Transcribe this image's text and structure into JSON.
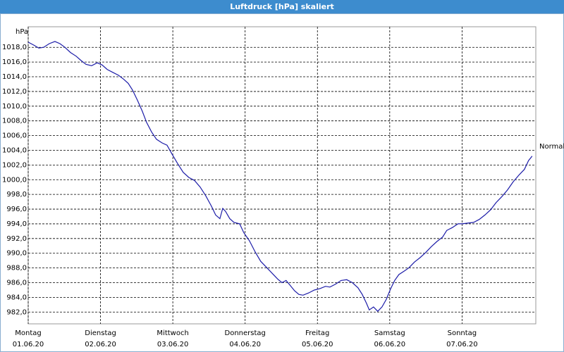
{
  "chart_data": {
    "type": "line",
    "title": "Luftdruck [hPa] skaliert",
    "y_label": "hPa",
    "annotation": "Normal",
    "xlim": [
      0,
      7.02
    ],
    "ylim": [
      980.4,
      1020.8
    ],
    "grid": true,
    "color": "#1c1ca8",
    "xticks": [
      {
        "value": 0,
        "label": "Montag"
      },
      {
        "value": 1,
        "label": "Dienstag"
      },
      {
        "value": 2,
        "label": "Mittwoch"
      },
      {
        "value": 3,
        "label": "Donnerstag"
      },
      {
        "value": 4,
        "label": "Freitag"
      },
      {
        "value": 5,
        "label": "Samstag"
      },
      {
        "value": 6,
        "label": "Sonntag"
      }
    ],
    "xtick_dates": [
      "01.06.20",
      "02.06.20",
      "03.06.20",
      "04.06.20",
      "05.06.20",
      "06.06.20",
      "07.06.20"
    ],
    "yticks": [
      {
        "value": 982,
        "label": "982,0"
      },
      {
        "value": 984,
        "label": "984,0"
      },
      {
        "value": 986,
        "label": "986,0"
      },
      {
        "value": 988,
        "label": "988,0"
      },
      {
        "value": 990,
        "label": "990,0"
      },
      {
        "value": 992,
        "label": "992,0"
      },
      {
        "value": 994,
        "label": "994,0"
      },
      {
        "value": 996,
        "label": "996,0"
      },
      {
        "value": 998,
        "label": "998,0"
      },
      {
        "value": 1000,
        "label": "1000,0"
      },
      {
        "value": 1002,
        "label": "1002,0"
      },
      {
        "value": 1004,
        "label": "1004,0"
      },
      {
        "value": 1006,
        "label": "1006,0"
      },
      {
        "value": 1008,
        "label": "1008,0"
      },
      {
        "value": 1010,
        "label": "1010,0"
      },
      {
        "value": 1012,
        "label": "1012,0"
      },
      {
        "value": 1014,
        "label": "1014,0"
      },
      {
        "value": 1016,
        "label": "1016,0"
      },
      {
        "value": 1018,
        "label": "1018,0"
      }
    ],
    "x": [
      0,
      0.078,
      0.146,
      0.214,
      0.292,
      0.37,
      0.439,
      0.507,
      0.585,
      0.663,
      0.731,
      0.799,
      0.877,
      0.955,
      1.023,
      1.092,
      1.17,
      1.248,
      1.316,
      1.384,
      1.442,
      1.511,
      1.579,
      1.637,
      1.706,
      1.774,
      1.852,
      1.92,
      1.988,
      2.066,
      2.144,
      2.222,
      2.3,
      2.378,
      2.456,
      2.534,
      2.593,
      2.651,
      2.69,
      2.729,
      2.788,
      2.846,
      2.924,
      2.982,
      3.06,
      3.138,
      3.216,
      3.294,
      3.372,
      3.45,
      3.509,
      3.567,
      3.626,
      3.684,
      3.743,
      3.801,
      3.879,
      3.957,
      4.035,
      4.113,
      4.172,
      4.25,
      4.327,
      4.405,
      4.483,
      4.561,
      4.62,
      4.678,
      4.717,
      4.776,
      4.834,
      4.893,
      4.951,
      5.01,
      5.068,
      5.127,
      5.205,
      5.263,
      5.341,
      5.419,
      5.497,
      5.575,
      5.653,
      5.731,
      5.789,
      5.867,
      5.945,
      6.004,
      6.082,
      6.16,
      6.238,
      6.316,
      6.394,
      6.472,
      6.55,
      6.628,
      6.706,
      6.784,
      6.862,
      6.92,
      6.969
    ],
    "values": [
      1018.7,
      1018.3,
      1017.9,
      1018.0,
      1018.5,
      1018.8,
      1018.5,
      1018.0,
      1017.3,
      1016.8,
      1016.2,
      1015.7,
      1015.5,
      1015.9,
      1015.6,
      1015.0,
      1014.6,
      1014.2,
      1013.7,
      1013.1,
      1012.2,
      1010.8,
      1009.3,
      1007.8,
      1006.5,
      1005.5,
      1005.0,
      1004.7,
      1003.5,
      1002.2,
      1001.0,
      1000.3,
      999.9,
      999.0,
      997.8,
      996.4,
      995.2,
      994.7,
      996.1,
      995.7,
      994.7,
      994.2,
      994.0,
      992.8,
      991.7,
      990.2,
      988.9,
      988.1,
      987.3,
      986.5,
      986.0,
      986.3,
      985.6,
      984.9,
      984.4,
      984.3,
      984.6,
      985.0,
      985.2,
      985.5,
      985.4,
      985.8,
      986.3,
      986.4,
      986.0,
      985.3,
      984.4,
      983.2,
      982.3,
      982.7,
      982.1,
      982.7,
      983.7,
      985.1,
      986.3,
      987.1,
      987.6,
      988.0,
      988.8,
      989.4,
      990.1,
      990.9,
      991.6,
      992.2,
      993.1,
      993.5,
      994.0,
      994.0,
      994.1,
      994.2,
      994.6,
      995.2,
      995.9,
      996.9,
      997.7,
      998.6,
      999.7,
      1000.6,
      1001.4,
      1002.6,
      1003.2
    ]
  }
}
